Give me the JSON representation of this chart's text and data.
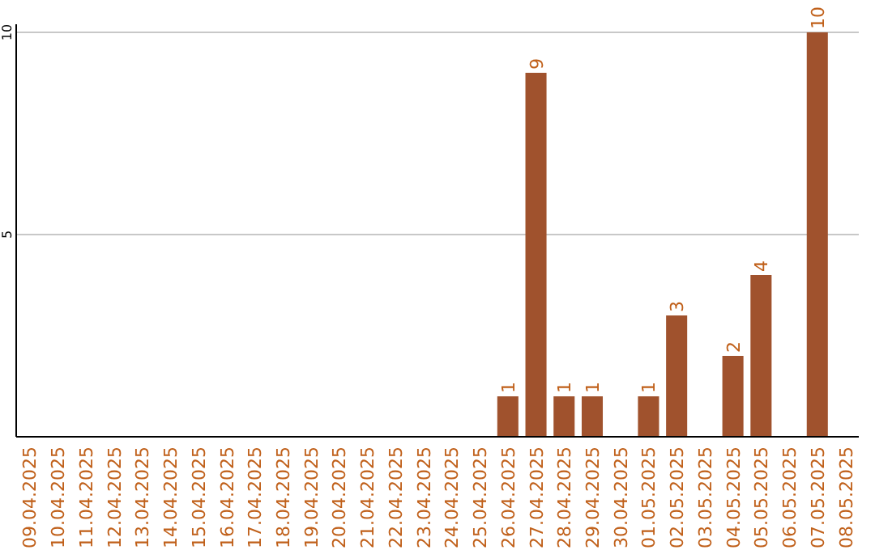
{
  "chart_data": {
    "type": "bar",
    "categories": [
      "09.04.2025",
      "10.04.2025",
      "11.04.2025",
      "12.04.2025",
      "13.04.2025",
      "14.04.2025",
      "15.04.2025",
      "16.04.2025",
      "17.04.2025",
      "18.04.2025",
      "19.04.2025",
      "20.04.2025",
      "21.04.2025",
      "22.04.2025",
      "23.04.2025",
      "24.04.2025",
      "25.04.2025",
      "26.04.2025",
      "27.04.2025",
      "28.04.2025",
      "29.04.2025",
      "30.04.2025",
      "01.05.2025",
      "02.05.2025",
      "03.05.2025",
      "04.05.2025",
      "05.05.2025",
      "06.05.2025",
      "07.05.2025",
      "08.05.2025"
    ],
    "values": [
      0,
      0,
      0,
      0,
      0,
      0,
      0,
      0,
      0,
      0,
      0,
      0,
      0,
      0,
      0,
      0,
      0,
      1,
      9,
      1,
      1,
      0,
      1,
      3,
      0,
      2,
      4,
      0,
      10,
      0
    ],
    "value_labels": [
      null,
      null,
      null,
      null,
      null,
      null,
      null,
      null,
      null,
      null,
      null,
      null,
      null,
      null,
      null,
      null,
      null,
      "1",
      "9",
      "1",
      "1",
      null,
      "1",
      "3",
      null,
      "2",
      "4",
      null,
      "10",
      null
    ],
    "color": "#a0522d",
    "ylim": [
      0,
      10
    ],
    "yticks": [
      5,
      10
    ],
    "grid": "y"
  }
}
